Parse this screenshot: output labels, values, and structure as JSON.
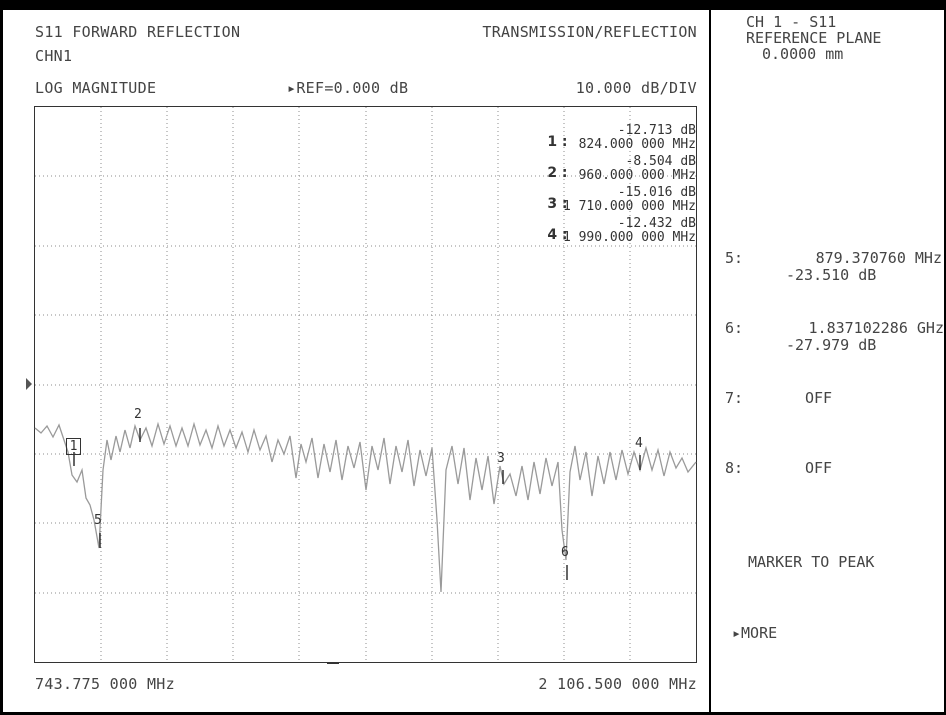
{
  "header": {
    "title_left": "S11 FORWARD REFLECTION",
    "channel": "CHN1",
    "title_right": "TRANSMISSION/REFLECTION",
    "format": "LOG MAGNITUDE",
    "ref": "▸REF=0.000 dB",
    "scale": "10.000 dB/DIV"
  },
  "footer": {
    "start_freq": "743.775 000 MHz",
    "stop_freq": "2 106.500 000 MHz"
  },
  "marker_table": [
    {
      "num": "1 :",
      "value": "-12.713 dB",
      "freq": "824.000 000 MHz"
    },
    {
      "num": "2 :",
      "value": "-8.504 dB",
      "freq": "960.000 000 MHz"
    },
    {
      "num": "3 :",
      "value": "-15.016 dB",
      "freq": "1 710.000 000 MHz"
    },
    {
      "num": "4 :",
      "value": "-12.432 dB",
      "freq": "1 990.000 000 MHz"
    }
  ],
  "trace_markers": {
    "m1": "1",
    "m2": "2",
    "m3": "3",
    "m4": "4",
    "m5": "5",
    "m6": "6"
  },
  "sidebar": {
    "header_line1": "CH 1 - S11",
    "header_line2": "REFERENCE PLANE",
    "header_line3": "0.0000 mm",
    "m5_label": "5:",
    "m5_freq": "879.370760 MHz",
    "m5_value": "-23.510 dB",
    "m6_label": "6:",
    "m6_freq": "1.837102286 GHz",
    "m6_value": "-27.979 dB",
    "m7_label": "7:",
    "m7_value": "OFF",
    "m8_label": "8:",
    "m8_value": "OFF",
    "marker_to_peak": "MARKER TO PEAK",
    "more": "▸MORE"
  },
  "colors": {
    "trace": "#9a9a9a",
    "grid": "#8c8c8c",
    "text": "#444444"
  }
}
